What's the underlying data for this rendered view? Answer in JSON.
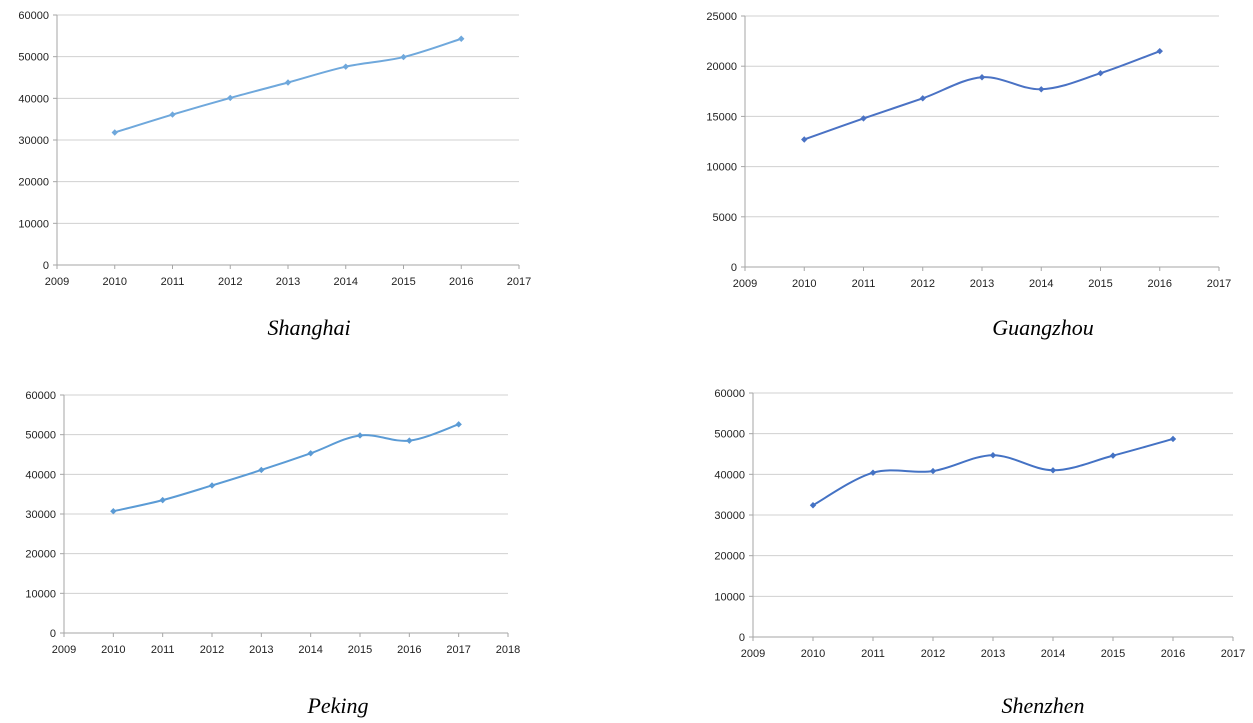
{
  "chart_data": [
    {
      "type": "line",
      "caption": "Shanghai",
      "x": [
        2010,
        2011,
        2012,
        2013,
        2014,
        2015,
        2016
      ],
      "series": [
        {
          "values": [
            31800,
            36100,
            40100,
            43800,
            47600,
            49900,
            54300
          ]
        }
      ],
      "xlim": [
        2009,
        2017
      ],
      "ylim": [
        0,
        60000
      ],
      "xticks": [
        2009,
        2010,
        2011,
        2012,
        2013,
        2014,
        2015,
        2016,
        2017
      ],
      "yticks": [
        0,
        10000,
        20000,
        30000,
        40000,
        50000,
        60000
      ],
      "grid": "horizontal",
      "line_color": "#6fa8dc",
      "marker": "diamond"
    },
    {
      "type": "line",
      "caption": "Guangzhou",
      "x": [
        2010,
        2011,
        2012,
        2013,
        2014,
        2015,
        2016
      ],
      "series": [
        {
          "values": [
            12700,
            14800,
            16800,
            18900,
            17700,
            19300,
            21500
          ]
        }
      ],
      "xlim": [
        2009,
        2017
      ],
      "ylim": [
        0,
        25000
      ],
      "xticks": [
        2009,
        2010,
        2011,
        2012,
        2013,
        2014,
        2015,
        2016,
        2017
      ],
      "yticks": [
        0,
        5000,
        10000,
        15000,
        20000,
        25000
      ],
      "grid": "horizontal",
      "line_color": "#4a72c4",
      "marker": "diamond"
    },
    {
      "type": "line",
      "caption": "Peking",
      "x": [
        2010,
        2011,
        2012,
        2013,
        2014,
        2015,
        2016,
        2017
      ],
      "series": [
        {
          "values": [
            30700,
            33500,
            37200,
            41100,
            45300,
            49800,
            48500,
            52600
          ]
        }
      ],
      "xlim": [
        2009,
        2018
      ],
      "ylim": [
        0,
        60000
      ],
      "xticks": [
        2009,
        2010,
        2011,
        2012,
        2013,
        2014,
        2015,
        2016,
        2017,
        2018
      ],
      "yticks": [
        0,
        10000,
        20000,
        30000,
        40000,
        50000,
        60000
      ],
      "grid": "horizontal",
      "line_color": "#5b9bd5",
      "marker": "diamond"
    },
    {
      "type": "line",
      "caption": "Shenzhen",
      "x": [
        2010,
        2011,
        2012,
        2013,
        2014,
        2015,
        2016
      ],
      "series": [
        {
          "values": [
            32400,
            40400,
            40800,
            44700,
            41000,
            44600,
            48700
          ]
        }
      ],
      "xlim": [
        2009,
        2017
      ],
      "ylim": [
        0,
        60000
      ],
      "xticks": [
        2009,
        2010,
        2011,
        2012,
        2013,
        2014,
        2015,
        2016,
        2017
      ],
      "yticks": [
        0,
        10000,
        20000,
        30000,
        40000,
        50000,
        60000
      ],
      "grid": "horizontal",
      "line_color": "#4472c4",
      "marker": "diamond"
    }
  ]
}
